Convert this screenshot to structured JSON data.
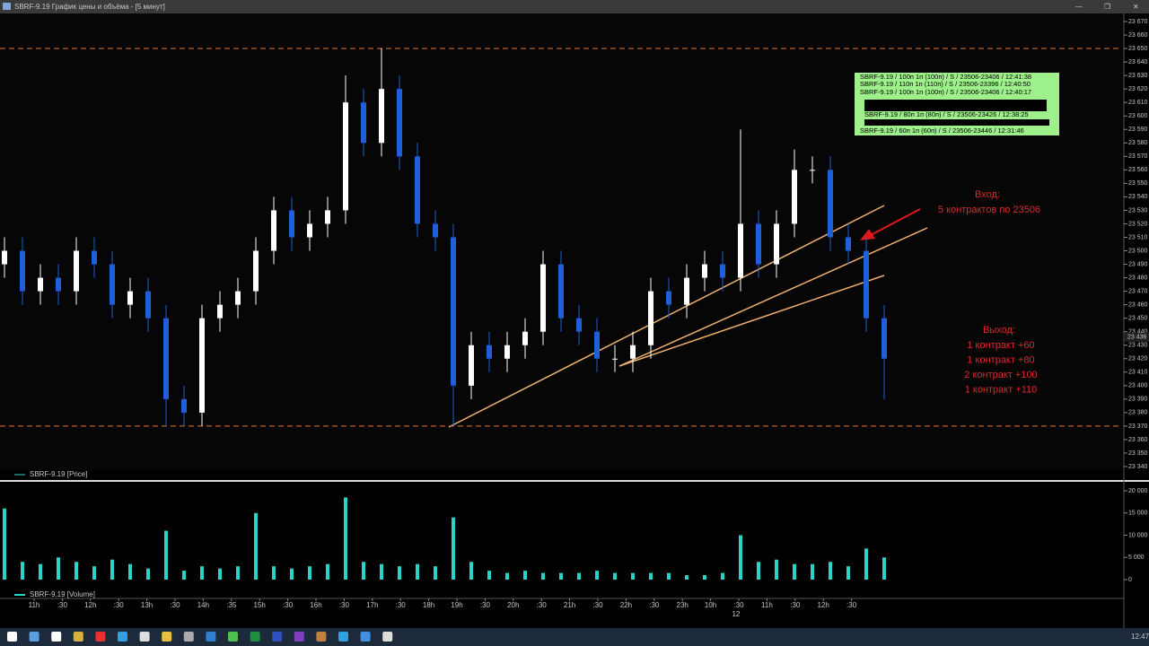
{
  "window": {
    "title": "SBRF-9.19 График цены и объёма - [5 минут]",
    "clock": "12:47"
  },
  "chart_data": [
    {
      "type": "candlestick",
      "legend": "SBRF-9.19 [Price]",
      "open": [
        23490,
        23500,
        23470,
        23480,
        23470,
        23500,
        23490,
        23460,
        23470,
        23450,
        23390,
        23380,
        23450,
        23460,
        23470,
        23500,
        23530,
        23510,
        23520,
        23530,
        23610,
        23580,
        23620,
        23570,
        23520,
        23510,
        23400,
        23430,
        23420,
        23430,
        23440,
        23490,
        23450,
        23440,
        23420,
        23420,
        23430,
        23470,
        23460,
        23480,
        23490,
        23480,
        23520,
        23490,
        23520,
        23560,
        23560,
        23510,
        23500,
        23450
      ],
      "high": [
        23510,
        23510,
        23490,
        23490,
        23510,
        23510,
        23500,
        23480,
        23480,
        23460,
        23400,
        23460,
        23470,
        23480,
        23510,
        23540,
        23540,
        23530,
        23540,
        23630,
        23620,
        23650,
        23630,
        23580,
        23530,
        23520,
        23440,
        23440,
        23440,
        23450,
        23500,
        23500,
        23460,
        23450,
        23430,
        23440,
        23480,
        23480,
        23490,
        23500,
        23500,
        23590,
        23530,
        23530,
        23575,
        23570,
        23570,
        23520,
        23510,
        23460
      ],
      "low": [
        23480,
        23460,
        23460,
        23460,
        23460,
        23480,
        23450,
        23450,
        23440,
        23370,
        23370,
        23370,
        23440,
        23450,
        23460,
        23490,
        23500,
        23500,
        23510,
        23520,
        23570,
        23570,
        23560,
        23510,
        23500,
        23370,
        23390,
        23410,
        23410,
        23420,
        23430,
        23440,
        23430,
        23410,
        23410,
        23410,
        23420,
        23450,
        23450,
        23470,
        23470,
        23470,
        23480,
        23480,
        23510,
        23550,
        23500,
        23490,
        23440,
        23390
      ],
      "close": [
        23500,
        23470,
        23480,
        23470,
        23500,
        23490,
        23460,
        23470,
        23450,
        23390,
        23380,
        23450,
        23460,
        23470,
        23500,
        23530,
        23510,
        23520,
        23530,
        23610,
        23580,
        23620,
        23570,
        23520,
        23510,
        23400,
        23430,
        23420,
        23430,
        23440,
        23490,
        23450,
        23440,
        23420,
        23420,
        23430,
        23470,
        23460,
        23480,
        23490,
        23480,
        23520,
        23490,
        23520,
        23560,
        23560,
        23510,
        23500,
        23450,
        23420
      ],
      "up_color": "#ffffff",
      "down_color": "#1f5fd8",
      "ylim": [
        23340,
        23670
      ],
      "yticks": [
        {
          "value": 23670,
          "label": "23 670"
        },
        {
          "value": 23660,
          "label": "23 660"
        },
        {
          "value": 23650,
          "label": "23 650"
        },
        {
          "value": 23640,
          "label": "23 640"
        },
        {
          "value": 23630,
          "label": "23 630"
        },
        {
          "value": 23620,
          "label": "23 620"
        },
        {
          "value": 23610,
          "label": "23 610"
        },
        {
          "value": 23600,
          "label": "23 600"
        },
        {
          "value": 23590,
          "label": "23 590"
        },
        {
          "value": 23580,
          "label": "23 580"
        },
        {
          "value": 23570,
          "label": "23 570"
        },
        {
          "value": 23560,
          "label": "23 560"
        },
        {
          "value": 23550,
          "label": "23 550"
        },
        {
          "value": 23540,
          "label": "23 540"
        },
        {
          "value": 23530,
          "label": "23 530"
        },
        {
          "value": 23520,
          "label": "23 520"
        },
        {
          "value": 23510,
          "label": "23 510"
        },
        {
          "value": 23500,
          "label": "23 500"
        },
        {
          "value": 23490,
          "label": "23 490"
        },
        {
          "value": 23480,
          "label": "23 480"
        },
        {
          "value": 23470,
          "label": "23 470"
        },
        {
          "value": 23460,
          "label": "23 460"
        },
        {
          "value": 23450,
          "label": "23 450"
        },
        {
          "value": 23440,
          "label": "23 440"
        },
        {
          "value": 23430,
          "label": "23 430"
        },
        {
          "value": 23420,
          "label": "23 420"
        },
        {
          "value": 23410,
          "label": "23 410"
        },
        {
          "value": 23400,
          "label": "23 400"
        },
        {
          "value": 23390,
          "label": "23 390"
        },
        {
          "value": 23380,
          "label": "23 380"
        },
        {
          "value": 23370,
          "label": "23 370"
        },
        {
          "value": 23360,
          "label": "23 360"
        },
        {
          "value": 23350,
          "label": "23 350"
        },
        {
          "value": 23340,
          "label": "23 340"
        }
      ],
      "levels": [
        23650,
        23370
      ],
      "level_color": "#e8742a",
      "current_price": {
        "value": 23436,
        "label": "23 436"
      },
      "entry": {
        "title": "Вход:",
        "text": "5 контрактов по 23506"
      },
      "exit": {
        "title": "Выход:",
        "lines": [
          "1 контракт +60",
          "1 контракт +80",
          "2 контракт +100",
          "1 контракт +110"
        ]
      }
    },
    {
      "type": "bar",
      "legend": "SBRF-9.19 [Volume]",
      "color": "#2ad4c8",
      "values": [
        16000,
        4000,
        3500,
        5000,
        4000,
        3000,
        4500,
        3500,
        2500,
        11000,
        2000,
        3000,
        2500,
        3000,
        15000,
        3000,
        2500,
        3000,
        3500,
        18500,
        4000,
        3500,
        3000,
        3500,
        3000,
        14000,
        4000,
        2000,
        1500,
        2000,
        1500,
        1500,
        1500,
        2000,
        1500,
        1500,
        1500,
        1500,
        1000,
        1000,
        1500,
        10000,
        4000,
        4500,
        3500,
        3500,
        4000,
        3000,
        7000,
        5000
      ],
      "ylim": [
        0,
        20000
      ],
      "yticks": [
        {
          "value": 20000,
          "label": "20 000"
        },
        {
          "value": 15000,
          "label": "15 000"
        },
        {
          "value": 10000,
          "label": "10 000"
        },
        {
          "value": 5000,
          "label": "5 000"
        },
        0
      ]
    }
  ],
  "time_axis": {
    "labels": [
      "11h",
      ":30",
      "12h",
      ":30",
      "13h",
      ":30",
      "14h",
      ":35",
      "15h",
      ":30",
      "16h",
      ":30",
      "17h",
      ":30",
      "18h",
      "19h",
      ":30",
      "20h",
      ":30",
      "21h",
      ":30",
      "22h",
      ":30",
      "23h",
      "10h",
      ":30",
      "11h",
      ":30",
      "12h",
      ":30"
    ],
    "date": "12"
  },
  "orders": [
    "SBRF-9.19 / 100п 1п (100п) / S / 23506-23406 / 12:41:38",
    "SBRF-9.19 / 110п 1п (110п) / S / 23506-23396 / 12:40:50",
    "SBRF-9.19 / 100п 1п (100п) / S / 23506-23406 / 12:40:17",
    "SBRF-9.19 / 80п 1п (80п) / S / 23506-23426 / 12:38:25",
    "SBRF-9.19 / 60п 1п (60п) / S / 23506-23446 / 12:31:46"
  ]
}
